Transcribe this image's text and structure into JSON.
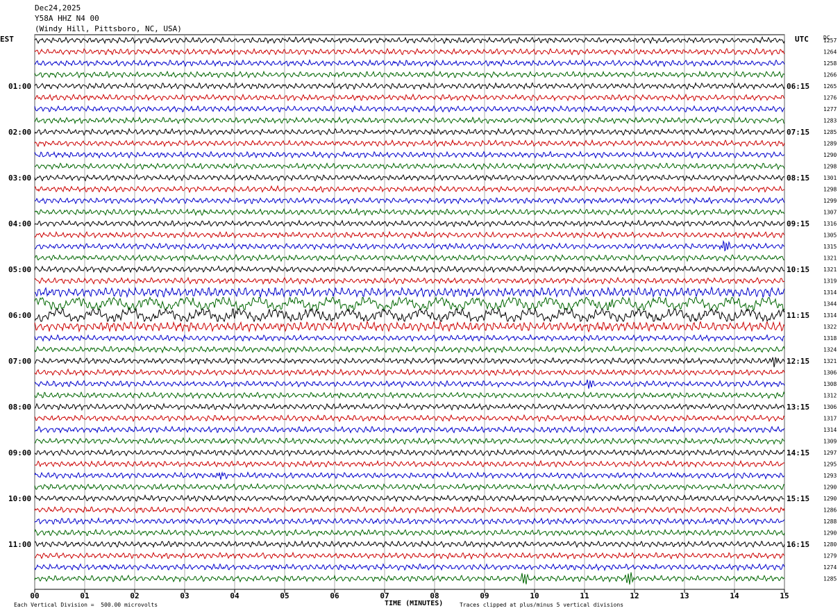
{
  "header": {
    "date": "Dec24,2025",
    "station": "Y58A HHZ N4 00",
    "location": "(Windy Hill, Pittsboro, NC, USA)"
  },
  "left_tz": "EST",
  "right_tz": "UTC",
  "dc_label": "DC",
  "footer": {
    "scale": "Each Vertical Division =  500.00 microvolts",
    "clip": "Traces clipped at plus/minus 5 vertical divisions",
    "x_title": "TIME (MINUTES)"
  },
  "colors": {
    "trace_cycle": [
      "#000000",
      "#cc0000",
      "#0000cc",
      "#006600"
    ],
    "grid": "#888888"
  },
  "chart_data": {
    "type": "line",
    "title": "",
    "xlabel": "TIME (MINUTES)",
    "xlim": [
      0,
      15
    ],
    "x_ticks": [
      "00",
      "01",
      "02",
      "03",
      "04",
      "05",
      "06",
      "07",
      "08",
      "09",
      "10",
      "11",
      "12",
      "13",
      "14",
      "15"
    ],
    "rows": 48,
    "minutes_per_row": 15,
    "left_hour_labels": [
      "01:00",
      "02:00",
      "03:00",
      "04:00",
      "05:00",
      "06:00",
      "07:00",
      "08:00",
      "09:00",
      "10:00",
      "11:00"
    ],
    "right_hour_labels": [
      "06:15",
      "07:15",
      "08:15",
      "09:15",
      "10:15",
      "11:15",
      "12:15",
      "13:15",
      "14:15",
      "15:15",
      "16:15"
    ],
    "dc_offsets": [
      1257,
      1264,
      1258,
      1266,
      1265,
      1276,
      1277,
      1283,
      1285,
      1289,
      1290,
      1298,
      1301,
      1298,
      1299,
      1307,
      1316,
      1305,
      1315,
      1321,
      1321,
      1319,
      1314,
      1344,
      1314,
      1322,
      1318,
      1324,
      1321,
      1306,
      1308,
      1312,
      1306,
      1317,
      1314,
      1309,
      1297,
      1295,
      1293,
      1290,
      1290,
      1286,
      1288,
      1290,
      1280,
      1279,
      1274,
      1285
    ],
    "events": [
      {
        "row": 18,
        "minute": 13.8,
        "amp": 1.0
      },
      {
        "row": 23,
        "minute": 11.5,
        "amp": 0.5
      },
      {
        "row": 24,
        "minute": 4.0,
        "amp": 0.6
      },
      {
        "row": 28,
        "minute": 14.8,
        "amp": 0.8
      },
      {
        "row": 30,
        "minute": 11.1,
        "amp": 0.6
      },
      {
        "row": 38,
        "minute": 3.7,
        "amp": 0.7
      },
      {
        "row": 47,
        "minute": 9.8,
        "amp": 0.9
      },
      {
        "row": 47,
        "minute": 11.9,
        "amp": 1.0
      }
    ]
  }
}
